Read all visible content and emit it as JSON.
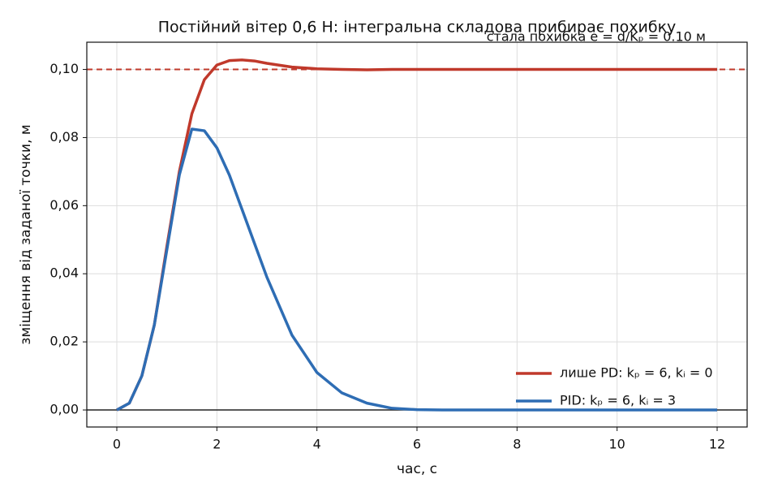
{
  "chart_data": {
    "type": "line",
    "title": "Постійний вітер 0,6 Н: інтегральна складова прибирає похибку",
    "xlabel": "час, с",
    "ylabel": "зміщення від заданої точки, м",
    "annotation": "стала похибка e = d/Kₚ = 0.10 м",
    "annotation_color": "#c0392b",
    "x": [
      0,
      0.25,
      0.5,
      0.75,
      1.0,
      1.25,
      1.5,
      1.75,
      2.0,
      2.25,
      2.5,
      2.75,
      3.0,
      3.5,
      4.0,
      4.5,
      5.0,
      5.5,
      6.0,
      6.5,
      7.0,
      7.5,
      8.0,
      8.5,
      9.0,
      9.5,
      10.0,
      10.5,
      11.0,
      11.5,
      12.0
    ],
    "series": [
      {
        "name": "лише PD: kₚ = 6, kᵢ = 0",
        "color": "#c0392b",
        "values": [
          0,
          0.002,
          0.01,
          0.025,
          0.048,
          0.07,
          0.087,
          0.097,
          0.1013,
          0.1026,
          0.1028,
          0.1025,
          0.1018,
          0.1007,
          0.1002,
          0.1,
          0.0999,
          0.1,
          0.1,
          0.1,
          0.1,
          0.1,
          0.1,
          0.1,
          0.1,
          0.1,
          0.1,
          0.1,
          0.1,
          0.1,
          0.1
        ]
      },
      {
        "name": "PID: kₚ = 6, kᵢ = 3",
        "color": "#2e6db4",
        "values": [
          0,
          0.002,
          0.01,
          0.025,
          0.047,
          0.069,
          0.0825,
          0.082,
          0.077,
          0.069,
          0.059,
          0.049,
          0.039,
          0.022,
          0.011,
          0.005,
          0.002,
          0.0005,
          0.0001,
          0,
          0,
          0,
          0,
          0,
          0,
          0,
          0,
          0,
          0,
          0,
          0
        ]
      }
    ],
    "hlines": [
      {
        "value": 0.1,
        "color": "#c0392b",
        "style": "dashed"
      },
      {
        "value": 0,
        "color": "#222222",
        "style": "solid"
      }
    ],
    "xlim": [
      -0.6,
      12.6
    ],
    "ylim": [
      -0.005,
      0.108
    ],
    "xticks": [
      0,
      2,
      4,
      6,
      8,
      10,
      12
    ],
    "yticks": [
      {
        "value": 0,
        "label": "0,00"
      },
      {
        "value": 0.02,
        "label": "0,02"
      },
      {
        "value": 0.04,
        "label": "0,04"
      },
      {
        "value": 0.06,
        "label": "0,06"
      },
      {
        "value": 0.08,
        "label": "0,08"
      },
      {
        "value": 0.1,
        "label": "0,10"
      }
    ],
    "grid": true,
    "legend": "lower right"
  }
}
